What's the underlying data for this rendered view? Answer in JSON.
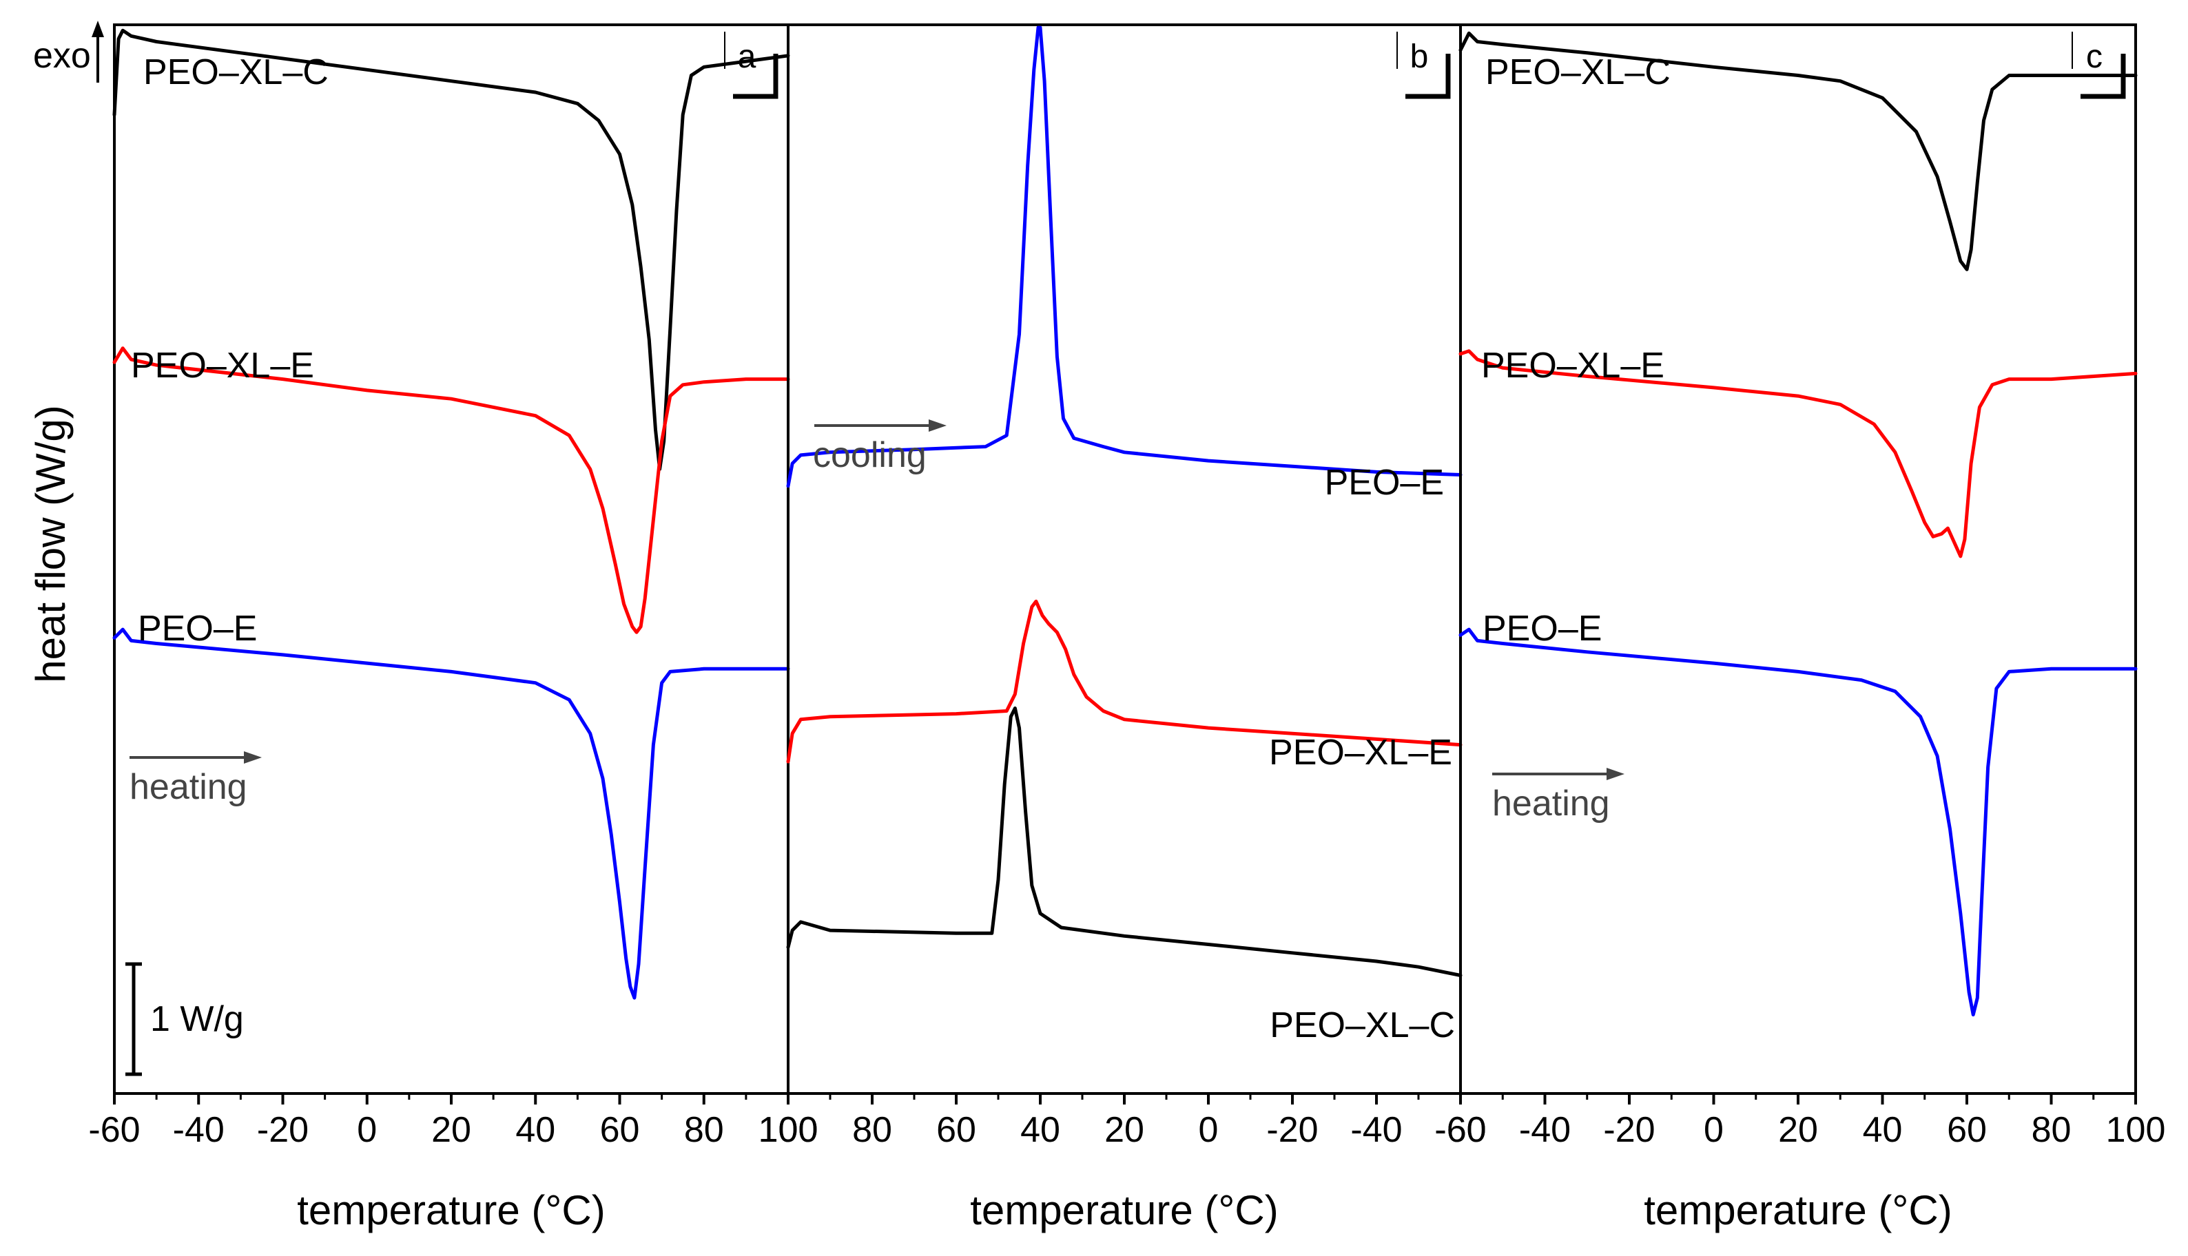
{
  "figure": {
    "ylabel": "heat flow (W/g)",
    "exo_label": "exo",
    "scale_bar_label": "1 W/g",
    "colors": {
      "PEO–XL–C": "#000000",
      "PEO–XL–E": "#ff0000",
      "PEO–E": "#0000ff",
      "annotation": "#444444"
    }
  },
  "chart_data": [
    {
      "type": "line",
      "panel": "a",
      "title": "",
      "xlabel": "temperature (°C)",
      "ylabel": "heat flow (W/g)",
      "xlim": [
        -60,
        100
      ],
      "reverse_x": false,
      "x_ticks": [
        -60,
        -40,
        -20,
        0,
        20,
        40,
        60,
        80,
        100
      ],
      "x_tick_labels": [
        "-60",
        "-40",
        "-20",
        "0",
        "20",
        "40",
        "60",
        "80",
        "100"
      ],
      "annotation": "heating",
      "series": [
        {
          "name": "PEO–XL–C",
          "color": "#000000",
          "label": "PEO–XL–C",
          "points": [
            [
              -60,
              -1.6
            ],
            [
              -59,
              -0.25
            ],
            [
              -58,
              -0.1
            ],
            [
              -56,
              -0.2
            ],
            [
              -50,
              -0.3
            ],
            [
              -30,
              -0.5
            ],
            [
              0,
              -0.8
            ],
            [
              20,
              -1.0
            ],
            [
              40,
              -1.2
            ],
            [
              50,
              -1.4
            ],
            [
              55,
              -1.7
            ],
            [
              60,
              -2.3
            ],
            [
              63,
              -3.2
            ],
            [
              65,
              -4.3
            ],
            [
              67,
              -5.6
            ],
            [
              68.5,
              -7.2
            ],
            [
              69.5,
              -7.9
            ],
            [
              70.5,
              -7.4
            ],
            [
              72,
              -5.4
            ],
            [
              73.5,
              -3.3
            ],
            [
              75,
              -1.6
            ],
            [
              77,
              -0.9
            ],
            [
              80,
              -0.75
            ],
            [
              90,
              -0.65
            ],
            [
              100,
              -0.55
            ]
          ]
        },
        {
          "name": "PEO–XL–E",
          "color": "#ff0000",
          "label": "PEO–XL–E",
          "points": [
            [
              -60,
              -6.0
            ],
            [
              -58,
              -5.75
            ],
            [
              -56,
              -5.95
            ],
            [
              -50,
              -6.05
            ],
            [
              -20,
              -6.3
            ],
            [
              0,
              -6.5
            ],
            [
              20,
              -6.65
            ],
            [
              40,
              -6.95
            ],
            [
              48,
              -7.3
            ],
            [
              53,
              -7.9
            ],
            [
              56,
              -8.6
            ],
            [
              59,
              -9.6
            ],
            [
              61,
              -10.3
            ],
            [
              63,
              -10.7
            ],
            [
              64,
              -10.8
            ],
            [
              65,
              -10.7
            ],
            [
              66,
              -10.2
            ],
            [
              68,
              -8.8
            ],
            [
              70,
              -7.4
            ],
            [
              72,
              -6.6
            ],
            [
              75,
              -6.4
            ],
            [
              80,
              -6.35
            ],
            [
              90,
              -6.3
            ],
            [
              100,
              -6.3
            ]
          ]
        },
        {
          "name": "PEO–E",
          "color": "#0000ff",
          "label": "PEO–E",
          "points": [
            [
              -60,
              -10.9
            ],
            [
              -58,
              -10.75
            ],
            [
              -56,
              -10.95
            ],
            [
              -50,
              -11.0
            ],
            [
              -20,
              -11.2
            ],
            [
              0,
              -11.35
            ],
            [
              20,
              -11.5
            ],
            [
              40,
              -11.7
            ],
            [
              48,
              -12.0
            ],
            [
              53,
              -12.6
            ],
            [
              56,
              -13.4
            ],
            [
              58,
              -14.4
            ],
            [
              60,
              -15.6
            ],
            [
              61.5,
              -16.6
            ],
            [
              62.5,
              -17.1
            ],
            [
              63.5,
              -17.3
            ],
            [
              64.5,
              -16.7
            ],
            [
              66,
              -15.0
            ],
            [
              68,
              -12.8
            ],
            [
              70,
              -11.7
            ],
            [
              72,
              -11.5
            ],
            [
              80,
              -11.45
            ],
            [
              100,
              -11.45
            ]
          ]
        }
      ]
    },
    {
      "type": "line",
      "panel": "b",
      "title": "",
      "xlabel": "temperature (°C)",
      "ylabel": "heat flow (W/g)",
      "xlim": [
        100,
        -60
      ],
      "reverse_x": true,
      "x_ticks": [
        100,
        80,
        60,
        40,
        20,
        0,
        -20,
        -40,
        -60
      ],
      "x_tick_labels": [
        "100",
        "80",
        "60",
        "40",
        "20",
        "0",
        "-20",
        "-40",
        "-60"
      ],
      "annotation": "cooling",
      "series": [
        {
          "name": "PEO–E",
          "color": "#0000ff",
          "label": "PEO–E",
          "points": [
            [
              100,
              -8.2
            ],
            [
              99,
              -7.8
            ],
            [
              97,
              -7.65
            ],
            [
              90,
              -7.6
            ],
            [
              70,
              -7.55
            ],
            [
              53,
              -7.5
            ],
            [
              48,
              -7.3
            ],
            [
              45,
              -5.5
            ],
            [
              43,
              -2.5
            ],
            [
              41.5,
              -0.8
            ],
            [
              40.5,
              -0.05
            ],
            [
              40,
              -0.05
            ],
            [
              39,
              -1.0
            ],
            [
              37.5,
              -3.5
            ],
            [
              36,
              -5.9
            ],
            [
              34.5,
              -7.0
            ],
            [
              32,
              -7.35
            ],
            [
              25,
              -7.5
            ],
            [
              20,
              -7.6
            ],
            [
              0,
              -7.75
            ],
            [
              -20,
              -7.85
            ],
            [
              -40,
              -7.95
            ],
            [
              -60,
              -8.0
            ]
          ]
        },
        {
          "name": "PEO–XL–E",
          "color": "#ff0000",
          "label": "PEO–XL–E",
          "points": [
            [
              100,
              -13.1
            ],
            [
              99,
              -12.6
            ],
            [
              97,
              -12.35
            ],
            [
              90,
              -12.3
            ],
            [
              60,
              -12.25
            ],
            [
              48,
              -12.2
            ],
            [
              46,
              -11.9
            ],
            [
              44,
              -11.0
            ],
            [
              42,
              -10.35
            ],
            [
              41,
              -10.25
            ],
            [
              39.5,
              -10.5
            ],
            [
              38,
              -10.65
            ],
            [
              36,
              -10.8
            ],
            [
              34,
              -11.1
            ],
            [
              32,
              -11.55
            ],
            [
              29,
              -11.95
            ],
            [
              25,
              -12.2
            ],
            [
              20,
              -12.35
            ],
            [
              0,
              -12.5
            ],
            [
              -20,
              -12.6
            ],
            [
              -40,
              -12.7
            ],
            [
              -60,
              -12.8
            ]
          ]
        },
        {
          "name": "PEO–XL–C",
          "color": "#000000",
          "label": "PEO–XL–C",
          "points": [
            [
              100,
              -16.4
            ],
            [
              99,
              -16.1
            ],
            [
              97,
              -15.95
            ],
            [
              90,
              -16.1
            ],
            [
              60,
              -16.15
            ],
            [
              51.5,
              -16.15
            ],
            [
              50,
              -15.2
            ],
            [
              48.5,
              -13.5
            ],
            [
              47,
              -12.3
            ],
            [
              46,
              -12.15
            ],
            [
              45,
              -12.5
            ],
            [
              43.5,
              -14.0
            ],
            [
              42,
              -15.3
            ],
            [
              40,
              -15.8
            ],
            [
              35,
              -16.05
            ],
            [
              20,
              -16.2
            ],
            [
              0,
              -16.35
            ],
            [
              -20,
              -16.5
            ],
            [
              -40,
              -16.65
            ],
            [
              -50,
              -16.75
            ],
            [
              -60,
              -16.9
            ]
          ]
        }
      ]
    },
    {
      "type": "line",
      "panel": "c",
      "title": "",
      "xlabel": "temperature (°C)",
      "ylabel": "heat flow (W/g)",
      "xlim": [
        -60,
        100
      ],
      "reverse_x": false,
      "x_ticks": [
        -60,
        -40,
        -20,
        0,
        20,
        40,
        60,
        80,
        100
      ],
      "x_tick_labels": [
        "-60",
        "-40",
        "-20",
        "0",
        "20",
        "40",
        "60",
        "80",
        "100"
      ],
      "annotation": "heating",
      "series": [
        {
          "name": "PEO–XL–C",
          "color": "#000000",
          "label": "PEO–XL–C",
          "points": [
            [
              -60,
              -0.45
            ],
            [
              -58,
              -0.15
            ],
            [
              -56,
              -0.3
            ],
            [
              -50,
              -0.35
            ],
            [
              -30,
              -0.5
            ],
            [
              0,
              -0.75
            ],
            [
              20,
              -0.9
            ],
            [
              30,
              -1.0
            ],
            [
              40,
              -1.3
            ],
            [
              48,
              -1.9
            ],
            [
              53,
              -2.7
            ],
            [
              56,
              -3.5
            ],
            [
              58.5,
              -4.2
            ],
            [
              60,
              -4.35
            ],
            [
              61,
              -4.0
            ],
            [
              62.5,
              -2.8
            ],
            [
              64,
              -1.7
            ],
            [
              66,
              -1.15
            ],
            [
              70,
              -0.9
            ],
            [
              80,
              -0.9
            ],
            [
              100,
              -0.9
            ]
          ]
        },
        {
          "name": "PEO–XL–E",
          "color": "#ff0000",
          "label": "PEO–XL–E",
          "points": [
            [
              -60,
              -5.85
            ],
            [
              -58,
              -5.8
            ],
            [
              -56,
              -5.95
            ],
            [
              -50,
              -6.1
            ],
            [
              -30,
              -6.25
            ],
            [
              0,
              -6.45
            ],
            [
              20,
              -6.6
            ],
            [
              30,
              -6.75
            ],
            [
              38,
              -7.1
            ],
            [
              43,
              -7.6
            ],
            [
              47,
              -8.3
            ],
            [
              50,
              -8.85
            ],
            [
              52,
              -9.1
            ],
            [
              54,
              -9.05
            ],
            [
              55.5,
              -8.95
            ],
            [
              57,
              -9.2
            ],
            [
              58.5,
              -9.45
            ],
            [
              59.5,
              -9.15
            ],
            [
              61,
              -7.8
            ],
            [
              63,
              -6.8
            ],
            [
              66,
              -6.4
            ],
            [
              70,
              -6.3
            ],
            [
              80,
              -6.3
            ],
            [
              100,
              -6.2
            ]
          ]
        },
        {
          "name": "PEO–E",
          "color": "#0000ff",
          "label": "PEO–E",
          "points": [
            [
              -60,
              -10.85
            ],
            [
              -58,
              -10.75
            ],
            [
              -56,
              -10.95
            ],
            [
              -50,
              -11.0
            ],
            [
              -30,
              -11.15
            ],
            [
              0,
              -11.35
            ],
            [
              20,
              -11.5
            ],
            [
              35,
              -11.65
            ],
            [
              43,
              -11.85
            ],
            [
              49,
              -12.3
            ],
            [
              53,
              -13.0
            ],
            [
              56,
              -14.3
            ],
            [
              58.5,
              -15.8
            ],
            [
              60.5,
              -17.2
            ],
            [
              61.5,
              -17.6
            ],
            [
              62.5,
              -17.3
            ],
            [
              63.5,
              -15.6
            ],
            [
              65,
              -13.2
            ],
            [
              67,
              -11.8
            ],
            [
              70,
              -11.5
            ],
            [
              80,
              -11.45
            ],
            [
              100,
              -11.45
            ]
          ]
        }
      ]
    }
  ]
}
